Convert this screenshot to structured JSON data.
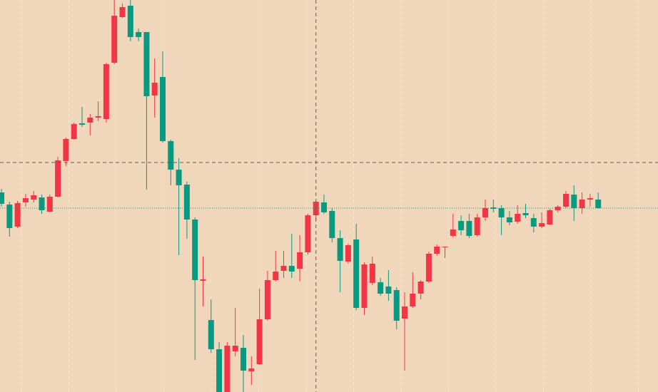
{
  "chart_data": {
    "type": "candlestick",
    "up_color": "#f23645",
    "down_color": "#089981",
    "background": "#f0d6bb",
    "ylim": [
      0,
      550
    ],
    "grid": true,
    "crosshair": {
      "x": 39,
      "y": 322
    },
    "open": [
      280,
      263,
      232,
      266,
      270,
      273,
      253,
      274,
      324,
      355,
      377,
      378,
      385,
      383,
      462,
      526,
      542,
      505,
      505,
      416,
      442,
      352,
      312,
      291,
      242,
      156,
      101,
      60,
      0,
      57,
      62,
      29,
      39,
      102,
      157,
      170,
      177,
      173,
      196,
      248,
      266,
      254,
      216,
      183,
      214,
      118,
      153,
      154,
      148,
      143,
      103,
      120,
      138,
      155,
      194,
      203,
      219,
      240,
      240,
      220,
      245,
      259,
      258,
      245,
      239,
      251,
      244,
      232,
      235,
      255,
      260,
      277,
      258,
      270,
      270
    ],
    "high": [
      285,
      267,
      268,
      278,
      282,
      277,
      277,
      330,
      357,
      378,
      400,
      390,
      408,
      462,
      550,
      545,
      550,
      510,
      505,
      468,
      478,
      354,
      328,
      295,
      245,
      190,
      130,
      70,
      70,
      118,
      80,
      50,
      145,
      170,
      198,
      198,
      222,
      220,
      250,
      268,
      277,
      258,
      227,
      208,
      236,
      182,
      190,
      160,
      171,
      147,
      140,
      168,
      157,
      197,
      207,
      204,
      250,
      248,
      250,
      250,
      270,
      270,
      262,
      254,
      262,
      264,
      250,
      252,
      257,
      262,
      282,
      290,
      280,
      278,
      280
    ],
    "low": [
      260,
      218,
      230,
      260,
      266,
      250,
      252,
      273,
      317,
      354,
      372,
      360,
      380,
      378,
      460,
      525,
      492,
      492,
      284,
      385,
      350,
      290,
      192,
      215,
      45,
      120,
      55,
      0,
      0,
      50,
      0,
      10,
      38,
      100,
      155,
      160,
      160,
      155,
      193,
      240,
      250,
      210,
      140,
      180,
      115,
      108,
      150,
      135,
      128,
      88,
      30,
      118,
      130,
      153,
      191,
      188,
      217,
      220,
      216,
      218,
      240,
      252,
      220,
      234,
      236,
      244,
      224,
      230,
      234,
      252,
      258,
      240,
      250,
      260,
      257
    ],
    "close": [
      264,
      230,
      265,
      272,
      276,
      255,
      274,
      325,
      355,
      376,
      375,
      385,
      387,
      460,
      528,
      540,
      498,
      498,
      415,
      434,
      352,
      312,
      290,
      242,
      157,
      158,
      60,
      0,
      65,
      65,
      30,
      33,
      102,
      157,
      169,
      177,
      169,
      196,
      248,
      267,
      252,
      216,
      184,
      206,
      118,
      179,
      180,
      138,
      138,
      100,
      120,
      138,
      155,
      194,
      204,
      204,
      228,
      227,
      219,
      245,
      258,
      257,
      245,
      238,
      250,
      248,
      232,
      237,
      255,
      260,
      278,
      258,
      270,
      272,
      258
    ]
  }
}
